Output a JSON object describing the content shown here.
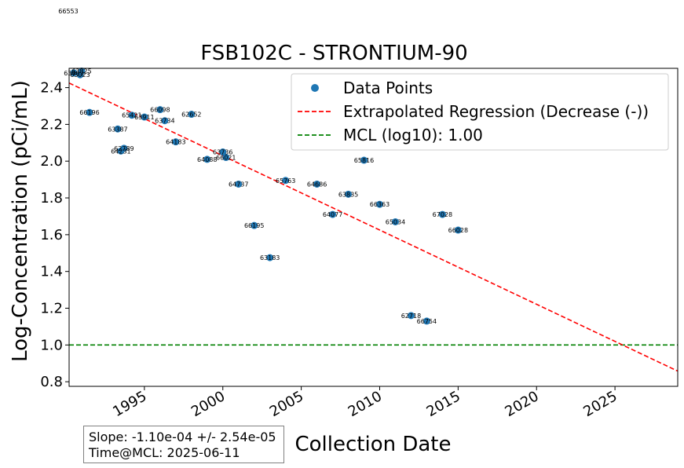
{
  "chart_data": {
    "type": "scatter",
    "title": "FSB102C - STRONTIUM-90",
    "xlabel": "Collection Date",
    "ylabel": "Log-Concentration (pCi/mL)",
    "xlim": [
      1990.2,
      2029.0
    ],
    "ylim": [
      0.775,
      2.505
    ],
    "x_ticks": [
      1995,
      2000,
      2005,
      2010,
      2015,
      2020,
      2025
    ],
    "y_ticks": [
      0.8,
      1.0,
      1.2,
      1.4,
      1.6,
      1.8,
      2.0,
      2.2,
      2.4
    ],
    "y_tick_labels": [
      "0.8",
      "1.0",
      "1.2",
      "1.4",
      "1.6",
      "1.8",
      "2.0",
      "2.2",
      "2.4"
    ],
    "grid": false,
    "legend_position": "top-right",
    "legend": {
      "points": "Data Points",
      "regression": "Extrapolated Regression (Decrease (-))",
      "mcl": "MCL (log10): 1.00"
    },
    "colors": {
      "points": "#1f77b4",
      "regression": "#ff0000",
      "mcl": "#008000"
    },
    "regression_line": {
      "x": [
        1990.2,
        2029.0
      ],
      "y": [
        2.425,
        0.858
      ]
    },
    "mcl_value": 1.0,
    "outlier_label": "66553",
    "points": [
      {
        "x": 1990.5,
        "y": 2.48,
        "label": "63483"
      },
      {
        "x": 1990.9,
        "y": 2.47,
        "label": "65023"
      },
      {
        "x": 1991.0,
        "y": 2.49,
        "label": "63825"
      },
      {
        "x": 1991.5,
        "y": 2.265,
        "label": "66196"
      },
      {
        "x": 1993.3,
        "y": 2.175,
        "label": "63387"
      },
      {
        "x": 1993.5,
        "y": 2.055,
        "label": "64231"
      },
      {
        "x": 1993.7,
        "y": 2.07,
        "label": "62789"
      },
      {
        "x": 1994.2,
        "y": 2.25,
        "label": "65421"
      },
      {
        "x": 1995.0,
        "y": 2.24,
        "label": "63911"
      },
      {
        "x": 1996.0,
        "y": 2.28,
        "label": "66098"
      },
      {
        "x": 1996.3,
        "y": 2.22,
        "label": "63734"
      },
      {
        "x": 1997.0,
        "y": 2.105,
        "label": "64183"
      },
      {
        "x": 1998.0,
        "y": 2.255,
        "label": "62652"
      },
      {
        "x": 1999.0,
        "y": 2.01,
        "label": "64088"
      },
      {
        "x": 2000.0,
        "y": 2.05,
        "label": "63736"
      },
      {
        "x": 2000.2,
        "y": 2.02,
        "label": "66021"
      },
      {
        "x": 2001.0,
        "y": 1.875,
        "label": "64737"
      },
      {
        "x": 2002.0,
        "y": 1.65,
        "label": "66195"
      },
      {
        "x": 2003.0,
        "y": 1.475,
        "label": "63183"
      },
      {
        "x": 2004.0,
        "y": 1.895,
        "label": "65763"
      },
      {
        "x": 2006.0,
        "y": 1.875,
        "label": "64686"
      },
      {
        "x": 2007.0,
        "y": 1.71,
        "label": "64077"
      },
      {
        "x": 2008.0,
        "y": 1.82,
        "label": "63835"
      },
      {
        "x": 2009.0,
        "y": 2.005,
        "label": "65816"
      },
      {
        "x": 2010.0,
        "y": 1.765,
        "label": "66363"
      },
      {
        "x": 2011.0,
        "y": 1.67,
        "label": "65034"
      },
      {
        "x": 2012.0,
        "y": 1.16,
        "label": "62718"
      },
      {
        "x": 2013.0,
        "y": 1.13,
        "label": "66754"
      },
      {
        "x": 2014.0,
        "y": 1.71,
        "label": "67028"
      },
      {
        "x": 2015.0,
        "y": 1.625,
        "label": "66028"
      }
    ]
  },
  "stats": {
    "slope": "Slope: -1.10e-04 +/- 2.54e-05",
    "time_at_mcl": "Time@MCL: 2025-06-11"
  }
}
